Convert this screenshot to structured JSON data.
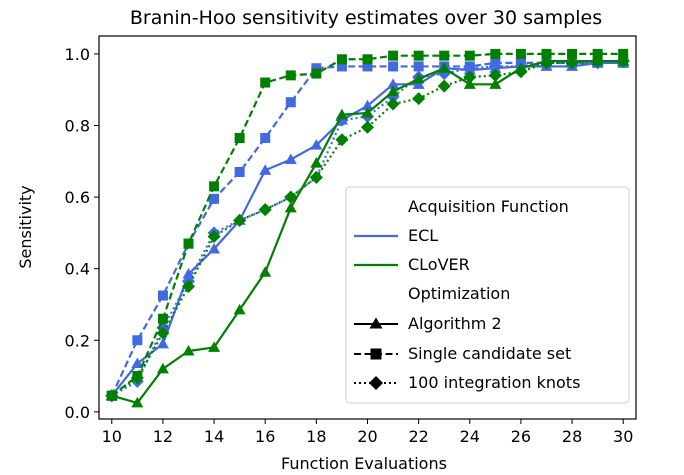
{
  "chart_data": {
    "type": "line",
    "title": "Branin-Hoo sensitivity estimates over 30 samples",
    "xlabel": "Function Evaluations",
    "ylabel": "Sensitivity",
    "xlim": [
      9.5,
      30.5
    ],
    "ylim": [
      -0.02,
      1.05
    ],
    "xticks": [
      10,
      12,
      14,
      16,
      18,
      20,
      22,
      24,
      26,
      28,
      30
    ],
    "yticks": [
      0.0,
      0.2,
      0.4,
      0.6,
      0.8,
      1.0
    ],
    "x": [
      10,
      11,
      12,
      13,
      14,
      15,
      16,
      17,
      18,
      19,
      20,
      21,
      22,
      23,
      24,
      25,
      26,
      27,
      28,
      29,
      30
    ],
    "colors": {
      "ECL": "#4169e1",
      "CLoVER": "#008000"
    },
    "series": [
      {
        "name": "ECL / Algorithm 2",
        "acquisition": "ECL",
        "optimization": "Algorithm 2",
        "values": [
          0.045,
          0.135,
          0.19,
          0.385,
          0.455,
          0.535,
          0.675,
          0.705,
          0.745,
          0.815,
          0.855,
          0.915,
          0.915,
          0.96,
          0.955,
          0.96,
          0.965,
          0.965,
          0.965,
          0.975,
          0.975
        ]
      },
      {
        "name": "ECL / Single candidate set",
        "acquisition": "ECL",
        "optimization": "Single candidate set",
        "values": [
          0.045,
          0.2,
          0.325,
          0.47,
          0.595,
          0.67,
          0.765,
          0.865,
          0.96,
          0.965,
          0.965,
          0.965,
          0.965,
          0.965,
          0.965,
          0.975,
          0.975,
          0.975,
          0.975,
          0.975,
          0.975
        ]
      },
      {
        "name": "ECL / 100 integration knots",
        "acquisition": "ECL",
        "optimization": "100 integration knots",
        "values": [
          0.045,
          0.085,
          0.235,
          0.365,
          0.5,
          0.535,
          0.565,
          0.6,
          0.655,
          0.815,
          0.825,
          0.88,
          0.935,
          0.945,
          0.96,
          0.965,
          0.965,
          0.975,
          0.975,
          0.975,
          0.98
        ]
      },
      {
        "name": "CLoVER / Algorithm 2",
        "acquisition": "CLoVER",
        "optimization": "Algorithm 2",
        "values": [
          0.045,
          0.025,
          0.12,
          0.17,
          0.18,
          0.285,
          0.39,
          0.57,
          0.695,
          0.83,
          0.835,
          0.895,
          0.93,
          0.96,
          0.915,
          0.915,
          0.96,
          0.98,
          0.98,
          0.98,
          0.98
        ]
      },
      {
        "name": "CLoVER / Single candidate set",
        "acquisition": "CLoVER",
        "optimization": "Single candidate set",
        "values": [
          0.045,
          0.1,
          0.26,
          0.47,
          0.63,
          0.765,
          0.92,
          0.94,
          0.945,
          0.985,
          0.985,
          0.995,
          0.995,
          0.995,
          0.995,
          1.0,
          1.0,
          1.0,
          1.0,
          1.0,
          1.0
        ]
      },
      {
        "name": "CLoVER / 100 integration knots",
        "acquisition": "CLoVER",
        "optimization": "100 integration knots",
        "values": [
          0.045,
          0.095,
          0.22,
          0.35,
          0.49,
          0.535,
          0.565,
          0.6,
          0.655,
          0.76,
          0.795,
          0.86,
          0.875,
          0.91,
          0.935,
          0.94,
          0.95,
          0.975,
          0.975,
          0.98,
          0.98
        ]
      }
    ],
    "legend": {
      "position": "lower-right",
      "heading_acquisition": "Acquisition Function",
      "acquisition": [
        "ECL",
        "CLoVER"
      ],
      "heading_optimization": "Optimization",
      "optimization": [
        "Algorithm 2",
        "Single candidate set",
        "100 integration knots"
      ]
    }
  }
}
